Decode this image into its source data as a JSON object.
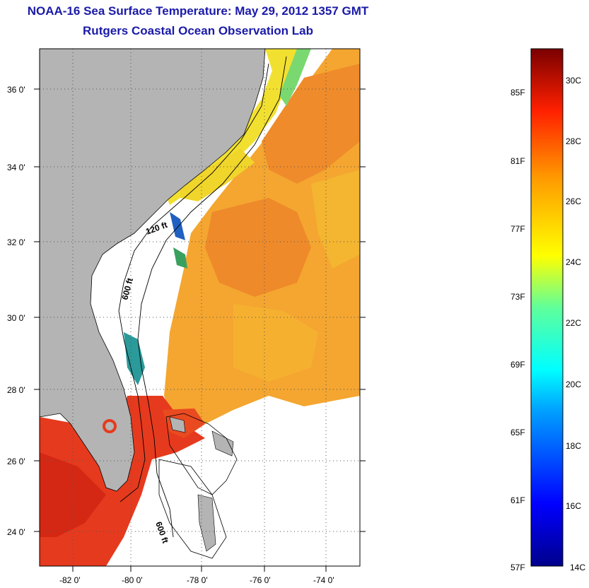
{
  "title": {
    "line1": "NOAA-16 Sea Surface Temperature:  May 29, 2012 1357 GMT",
    "line2": "Rutgers Coastal Ocean Observation Lab"
  },
  "axes": {
    "lat_ticks": [
      "36 0'",
      "34 0'",
      "32 0'",
      "30 0'",
      "28 0'",
      "26 0'",
      "24 0'"
    ],
    "lon_ticks": [
      "-82 0'",
      "-80 0'",
      "-78 0'",
      "-76 0'",
      "-74 0'"
    ]
  },
  "contour_labels": [
    "120 ft",
    "600 ft",
    "600 ft"
  ],
  "colorbar": {
    "fahrenheit": [
      "85F",
      "81F",
      "77F",
      "73F",
      "69F",
      "65F",
      "61F",
      "57F"
    ],
    "celsius": [
      "30C",
      "28C",
      "26C",
      "24C",
      "22C",
      "20C",
      "18C",
      "16C",
      "14C"
    ]
  },
  "colors": {
    "title": "#1a1aa8",
    "land": "#b4b4b4",
    "warm": "#e8321e",
    "mid": "#f0a028",
    "cool": "#f8dc20"
  }
}
